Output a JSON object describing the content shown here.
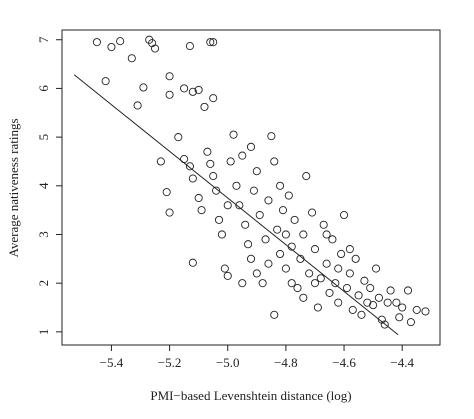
{
  "chart_data": {
    "type": "scatter",
    "x_label": "PMI−based Levenshtein distance (log)",
    "y_label": "Average nativeness ratings",
    "color": "#222222",
    "xlim": [
      -5.57,
      -4.27
    ],
    "ylim": [
      0.73,
      7.2
    ],
    "xticks": [
      {
        "value": -5.4,
        "label": "−5.4"
      },
      {
        "value": -5.2,
        "label": "−5.2"
      },
      {
        "value": -5.0,
        "label": "−5.0"
      },
      {
        "value": -4.8,
        "label": "−4.8"
      },
      {
        "value": -4.6,
        "label": "−4.6"
      },
      {
        "value": -4.4,
        "label": "−4.4"
      }
    ],
    "yticks": [
      1,
      2,
      3,
      4,
      5,
      6,
      7
    ],
    "trend_line": {
      "x": [
        -5.528,
        -4.414
      ],
      "y": [
        6.28,
        0.94
      ]
    },
    "x": [
      -5.45,
      -5.42,
      -5.4,
      -5.37,
      -5.33,
      -5.31,
      -5.29,
      -5.27,
      -5.26,
      -5.25,
      -5.13,
      -5.06,
      -5.05,
      -5.2,
      -5.2,
      -5.15,
      -5.12,
      -5.1,
      -5.08,
      -5.05,
      -5.17,
      -5.23,
      -5.21,
      -5.2,
      -5.12,
      -5.15,
      -5.13,
      -5.12,
      -5.1,
      -5.09,
      -5.07,
      -5.05,
      -5.04,
      -5.03,
      -5.02,
      -5.01,
      -5.0,
      -4.99,
      -4.98,
      -4.97,
      -4.96,
      -4.95,
      -4.94,
      -4.93,
      -4.92,
      -4.91,
      -4.9,
      -4.89,
      -4.88,
      -4.87,
      -4.86,
      -4.85,
      -4.84,
      -4.83,
      -4.82,
      -4.81,
      -4.8,
      -4.79,
      -4.78,
      -4.77,
      -4.76,
      -4.75,
      -4.74,
      -4.73,
      -4.72,
      -4.71,
      -4.7,
      -4.69,
      -4.68,
      -4.67,
      -4.66,
      -4.65,
      -4.64,
      -4.63,
      -4.62,
      -4.61,
      -4.6,
      -4.59,
      -4.58,
      -4.57,
      -4.56,
      -4.55,
      -4.54,
      -4.53,
      -4.52,
      -4.51,
      -4.5,
      -4.49,
      -4.48,
      -4.47,
      -4.46,
      -4.45,
      -4.44,
      -4.42,
      -4.41,
      -4.4,
      -4.38,
      -4.37,
      -4.35,
      -4.32,
      -4.9,
      -4.95,
      -5.0,
      -4.86,
      -4.78,
      -4.74,
      -4.7,
      -4.62,
      -4.66,
      -4.58,
      -4.82,
      -4.92,
      -5.06,
      -4.84,
      -4.8
    ],
    "y": [
      6.95,
      6.15,
      6.85,
      6.97,
      6.62,
      5.65,
      6.02,
      7.0,
      6.93,
      6.82,
      6.87,
      6.95,
      6.95,
      6.25,
      5.87,
      6.0,
      5.93,
      5.97,
      5.62,
      5.8,
      5.0,
      4.5,
      3.87,
      3.45,
      2.42,
      4.55,
      4.4,
      4.15,
      3.75,
      3.5,
      4.7,
      4.2,
      3.9,
      3.3,
      3.0,
      2.3,
      2.15,
      4.5,
      5.05,
      4.0,
      3.6,
      4.62,
      3.2,
      2.8,
      2.5,
      3.9,
      4.3,
      3.4,
      2.0,
      2.9,
      3.7,
      5.02,
      4.5,
      3.1,
      2.6,
      3.5,
      2.3,
      3.8,
      2.75,
      3.3,
      1.9,
      2.5,
      3.0,
      4.2,
      2.2,
      3.45,
      2.7,
      1.5,
      2.1,
      3.2,
      2.4,
      1.8,
      2.9,
      2.0,
      1.6,
      2.6,
      3.4,
      1.9,
      2.2,
      1.45,
      2.5,
      1.75,
      1.35,
      2.05,
      1.6,
      1.9,
      1.55,
      2.3,
      1.7,
      1.25,
      1.15,
      1.6,
      1.85,
      1.6,
      1.3,
      1.5,
      1.85,
      1.2,
      1.45,
      1.42,
      2.2,
      2.0,
      3.6,
      2.4,
      2.0,
      1.7,
      2.0,
      2.3,
      3.0,
      2.7,
      4.0,
      4.8,
      4.45,
      1.35,
      3.0
    ]
  }
}
